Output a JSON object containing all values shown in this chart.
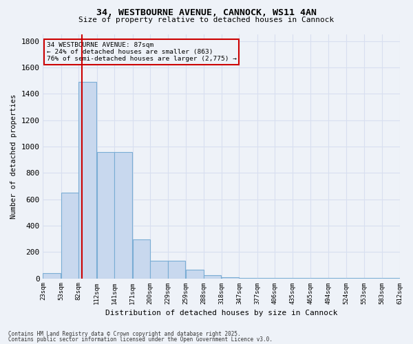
{
  "title1": "34, WESTBOURNE AVENUE, CANNOCK, WS11 4AN",
  "title2": "Size of property relative to detached houses in Cannock",
  "xlabel": "Distribution of detached houses by size in Cannock",
  "ylabel": "Number of detached properties",
  "footnote1": "Contains HM Land Registry data © Crown copyright and database right 2025.",
  "footnote2": "Contains public sector information licensed under the Open Government Licence v3.0.",
  "annotation_line1": "34 WESTBOURNE AVENUE: 87sqm",
  "annotation_line2": "← 24% of detached houses are smaller (863)",
  "annotation_line3": "76% of semi-detached houses are larger (2,775) →",
  "property_sqm": 87,
  "bar_left_edges": [
    23,
    53,
    82,
    112,
    141,
    171,
    200,
    229,
    259,
    288,
    318,
    347,
    377,
    406,
    435,
    465,
    494,
    524,
    553,
    583
  ],
  "bar_widths": [
    29,
    29,
    29,
    29,
    29,
    29,
    29,
    29,
    29,
    29,
    29,
    29,
    29,
    29,
    29,
    29,
    29,
    29,
    29,
    29
  ],
  "bar_heights": [
    40,
    650,
    1490,
    960,
    960,
    295,
    135,
    135,
    65,
    25,
    10,
    2,
    2,
    2,
    2,
    2,
    2,
    2,
    2,
    2
  ],
  "bar_color": "#c8d8ee",
  "bar_edgecolor": "#7aadd4",
  "vline_color": "#cc0000",
  "annotation_box_color": "#cc0000",
  "background_color": "#eef2f8",
  "grid_color": "#d8dff0",
  "ylim": [
    0,
    1850
  ],
  "yticks": [
    0,
    200,
    400,
    600,
    800,
    1000,
    1200,
    1400,
    1600,
    1800
  ],
  "x_tick_labels": [
    "23sqm",
    "53sqm",
    "82sqm",
    "112sqm",
    "141sqm",
    "171sqm",
    "200sqm",
    "229sqm",
    "259sqm",
    "288sqm",
    "318sqm",
    "347sqm",
    "377sqm",
    "406sqm",
    "435sqm",
    "465sqm",
    "494sqm",
    "524sqm",
    "553sqm",
    "583sqm",
    "612sqm"
  ]
}
